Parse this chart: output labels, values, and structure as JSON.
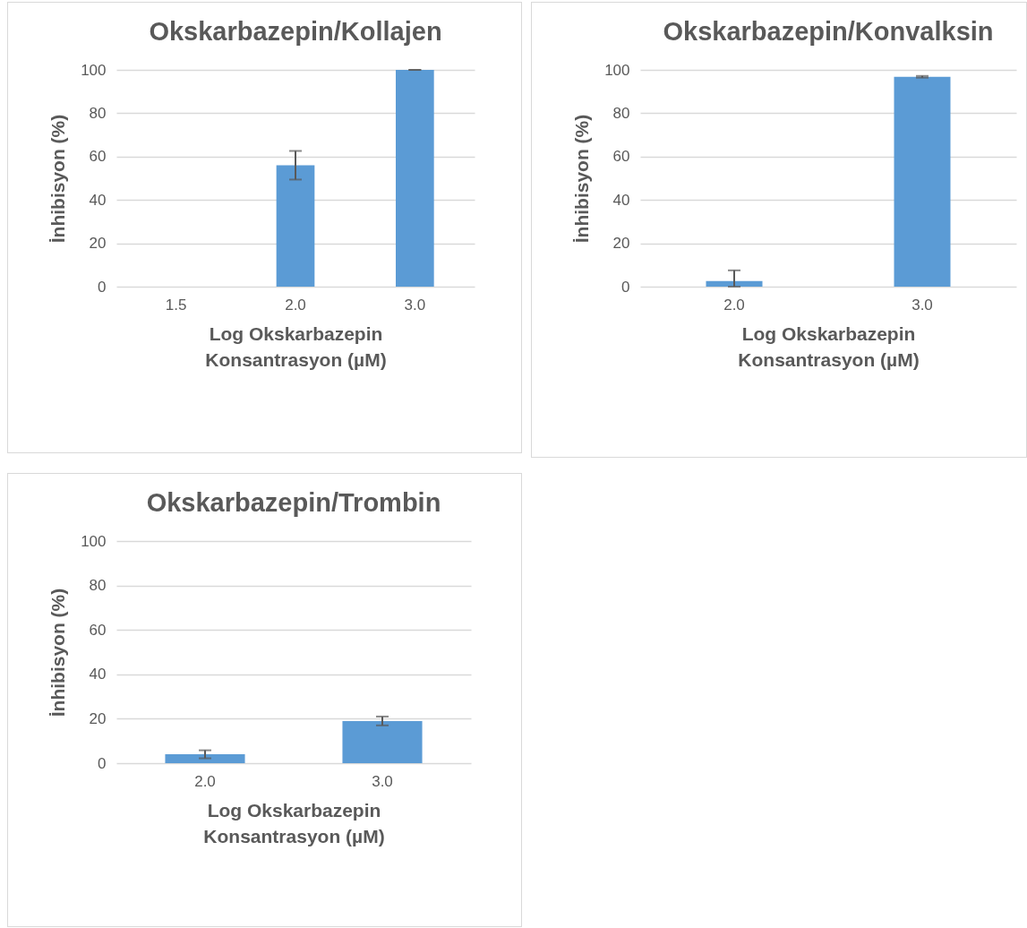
{
  "chart_data": [
    {
      "type": "bar",
      "title": "Okskarbazepin/Kollajen",
      "xlabel": "Log  Okskarbazepin\nKonsantrasyon (µM)",
      "ylabel": "İnhibisyon (%)",
      "categories": [
        "1.5",
        "2.0",
        "3.0"
      ],
      "values": [
        0,
        56,
        100
      ],
      "errors": [
        null,
        6.6,
        0
      ],
      "color": "#5b9bd5",
      "ylim": [
        0,
        100
      ],
      "yticks": [
        0,
        20,
        40,
        60,
        80,
        100
      ],
      "grid": "y"
    },
    {
      "type": "bar",
      "title": "Okskarbazepin/Konvalksin",
      "xlabel": "Log  Okskarbazepin\nKonsantrasyon (µM)",
      "ylabel": "İnhibisyon (%)",
      "categories": [
        "2.0",
        "3.0"
      ],
      "values": [
        2.6,
        96.8
      ],
      "errors": [
        [
          0,
          7.5
        ],
        0.4
      ],
      "color": "#5b9bd5",
      "ylim": [
        0,
        100
      ],
      "yticks": [
        0,
        20,
        40,
        60,
        80,
        100
      ],
      "grid": "y"
    },
    {
      "type": "bar",
      "title": "Okskarbazepin/Trombin",
      "xlabel": "Log  Okskarbazepin\nKonsantrasyon (µM)",
      "ylabel": "İnhibisyon (%)",
      "categories": [
        "2.0",
        "3.0"
      ],
      "values": [
        4,
        19
      ],
      "errors": [
        1.8,
        2
      ],
      "color": "#5b9bd5",
      "ylim": [
        0,
        100
      ],
      "yticks": [
        0,
        20,
        40,
        60,
        80,
        100
      ],
      "grid": "y"
    }
  ]
}
